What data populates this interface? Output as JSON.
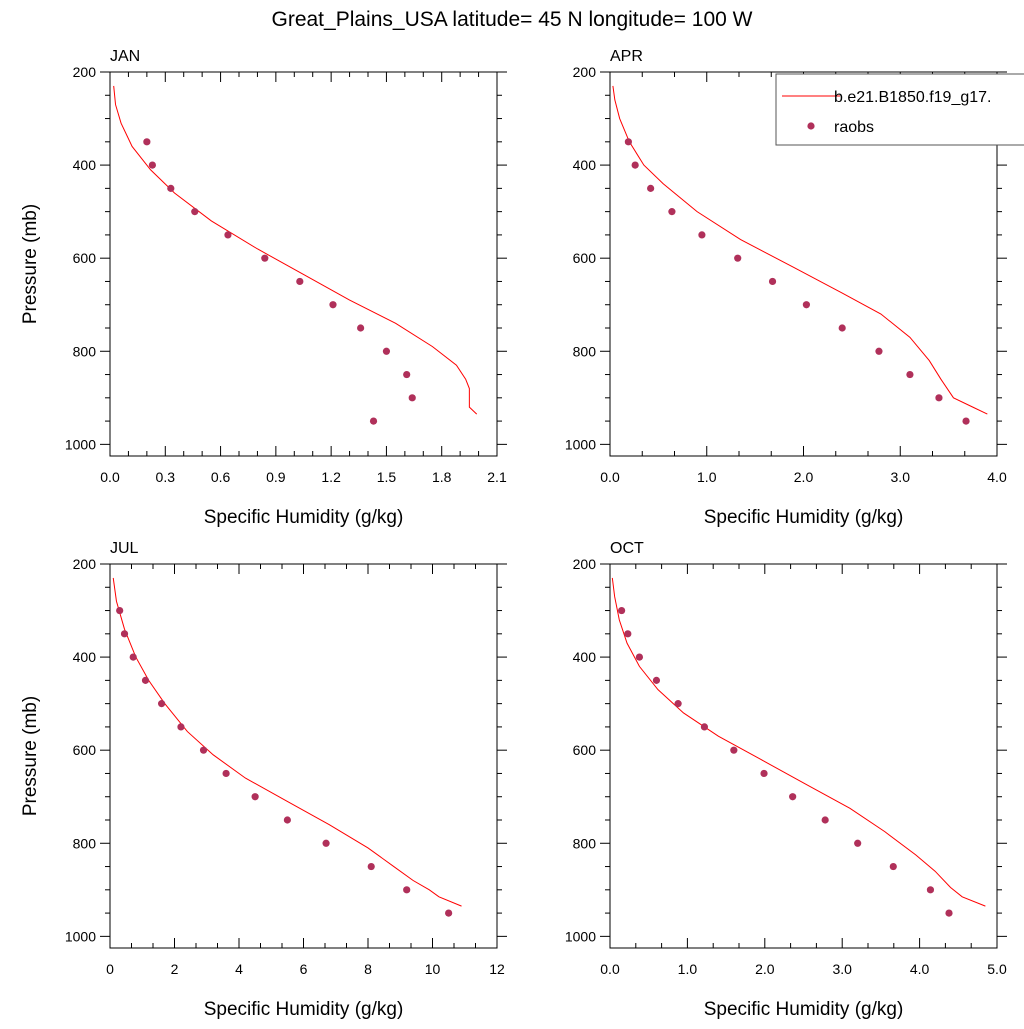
{
  "figure": {
    "title": "Great_Plains_USA  latitude= 45 N longitude= 100 W"
  },
  "legend": {
    "model_label": "b.e21.B1850.f19_g17.",
    "obs_label": "raobs"
  },
  "colors": {
    "model": "#ff0000",
    "obs": "#b0305a",
    "axis": "#000000"
  },
  "chart_data": [
    {
      "type": "line",
      "title": "JAN",
      "xlabel": "Specific Humidity (g/kg)",
      "ylabel": "Pressure (mb)",
      "xlim": [
        0,
        2.1
      ],
      "ylim": [
        1025,
        200
      ],
      "y_inverted": true,
      "xticks": [
        0,
        0.3,
        0.6,
        0.9,
        1.2,
        1.5,
        1.8,
        2.1
      ],
      "xtick_labels": [
        "0.0",
        "0.3",
        "0.6",
        "0.9",
        "1.2",
        "1.5",
        "1.8",
        "2.1"
      ],
      "yticks": [
        200,
        400,
        600,
        800,
        1000
      ],
      "ytick_labels": [
        "200",
        "400",
        "600",
        "800",
        "1000"
      ],
      "series": [
        {
          "name": "b.e21.B1850.f19_g17.",
          "kind": "line",
          "x": [
            0.02,
            0.03,
            0.06,
            0.12,
            0.22,
            0.35,
            0.55,
            0.8,
            1.05,
            1.3,
            1.55,
            1.75,
            1.88,
            1.93,
            1.95,
            1.95,
            1.99
          ],
          "y": [
            230,
            270,
            310,
            360,
            410,
            460,
            520,
            580,
            635,
            690,
            740,
            790,
            830,
            860,
            880,
            920,
            935
          ]
        },
        {
          "name": "raobs",
          "kind": "scatter",
          "x": [
            0.2,
            0.23,
            0.33,
            0.46,
            0.64,
            0.84,
            1.03,
            1.21,
            1.36,
            1.5,
            1.61,
            1.64,
            1.43
          ],
          "y": [
            350,
            400,
            450,
            500,
            550,
            600,
            650,
            700,
            750,
            800,
            850,
            900,
            950
          ]
        }
      ]
    },
    {
      "type": "line",
      "title": "APR",
      "xlabel": "Specific Humidity (g/kg)",
      "ylabel": "",
      "xlim": [
        0,
        4.0
      ],
      "ylim": [
        1025,
        200
      ],
      "y_inverted": true,
      "xticks": [
        0,
        1,
        2,
        3,
        4
      ],
      "xtick_labels": [
        "0.0",
        "1.0",
        "2.0",
        "3.0",
        "4.0"
      ],
      "yticks": [
        200,
        400,
        600,
        800,
        1000
      ],
      "ytick_labels": [
        "200",
        "400",
        "600",
        "800",
        "1000"
      ],
      "series": [
        {
          "name": "b.e21.B1850.f19_g17.",
          "kind": "line",
          "x": [
            0.03,
            0.05,
            0.1,
            0.2,
            0.35,
            0.55,
            0.9,
            1.35,
            1.9,
            2.4,
            2.8,
            3.1,
            3.3,
            3.42,
            3.55,
            3.75,
            3.9
          ],
          "y": [
            230,
            260,
            300,
            350,
            400,
            440,
            500,
            560,
            620,
            675,
            720,
            770,
            820,
            860,
            900,
            920,
            935
          ]
        },
        {
          "name": "raobs",
          "kind": "scatter",
          "x": [
            0.19,
            0.26,
            0.42,
            0.64,
            0.95,
            1.32,
            1.68,
            2.03,
            2.4,
            2.78,
            3.1,
            3.4,
            3.68
          ],
          "y": [
            350,
            400,
            450,
            500,
            550,
            600,
            650,
            700,
            750,
            800,
            850,
            900,
            950
          ]
        }
      ]
    },
    {
      "type": "line",
      "title": "JUL",
      "xlabel": "Specific Humidity (g/kg)",
      "ylabel": "Pressure (mb)",
      "xlim": [
        0,
        12
      ],
      "ylim": [
        1025,
        200
      ],
      "y_inverted": true,
      "xticks": [
        0,
        2,
        4,
        6,
        8,
        10,
        12
      ],
      "xtick_labels": [
        "0",
        "2",
        "4",
        "6",
        "8",
        "10",
        "12"
      ],
      "yticks": [
        200,
        400,
        600,
        800,
        1000
      ],
      "ytick_labels": [
        "200",
        "400",
        "600",
        "800",
        "1000"
      ],
      "series": [
        {
          "name": "b.e21.B1850.f19_g17.",
          "kind": "line",
          "x": [
            0.1,
            0.2,
            0.45,
            0.8,
            1.2,
            1.7,
            2.4,
            3.2,
            4.2,
            5.5,
            6.8,
            8.0,
            8.8,
            9.4,
            9.9,
            10.2,
            10.9
          ],
          "y": [
            230,
            280,
            340,
            400,
            450,
            500,
            560,
            610,
            660,
            710,
            760,
            810,
            850,
            880,
            900,
            915,
            935
          ]
        },
        {
          "name": "raobs",
          "kind": "scatter",
          "x": [
            0.3,
            0.45,
            0.72,
            1.1,
            1.6,
            2.2,
            2.9,
            3.6,
            4.5,
            5.5,
            6.7,
            8.1,
            9.2,
            10.5
          ],
          "y": [
            300,
            350,
            400,
            450,
            500,
            550,
            600,
            650,
            700,
            750,
            800,
            850,
            900,
            950
          ]
        }
      ]
    },
    {
      "type": "line",
      "title": "OCT",
      "xlabel": "Specific Humidity (g/kg)",
      "ylabel": "",
      "xlim": [
        0,
        5.0
      ],
      "ylim": [
        1025,
        200
      ],
      "y_inverted": true,
      "xticks": [
        0,
        1,
        2,
        3,
        4,
        5
      ],
      "xtick_labels": [
        "0.0",
        "1.0",
        "2.0",
        "3.0",
        "4.0",
        "5.0"
      ],
      "yticks": [
        200,
        400,
        600,
        800,
        1000
      ],
      "ytick_labels": [
        "200",
        "400",
        "600",
        "800",
        "1000"
      ],
      "series": [
        {
          "name": "b.e21.B1850.f19_g17.",
          "kind": "line",
          "x": [
            0.03,
            0.06,
            0.12,
            0.22,
            0.38,
            0.62,
            0.95,
            1.4,
            1.95,
            2.55,
            3.1,
            3.55,
            3.95,
            4.2,
            4.4,
            4.55,
            4.85
          ],
          "y": [
            230,
            270,
            320,
            370,
            420,
            470,
            520,
            570,
            620,
            675,
            725,
            775,
            825,
            860,
            895,
            915,
            935
          ]
        },
        {
          "name": "raobs",
          "kind": "scatter",
          "x": [
            0.15,
            0.23,
            0.38,
            0.6,
            0.88,
            1.22,
            1.6,
            1.99,
            2.36,
            2.78,
            3.2,
            3.66,
            4.14,
            4.38
          ],
          "y": [
            300,
            350,
            400,
            450,
            500,
            550,
            600,
            650,
            700,
            750,
            800,
            850,
            900,
            950
          ]
        }
      ]
    }
  ]
}
